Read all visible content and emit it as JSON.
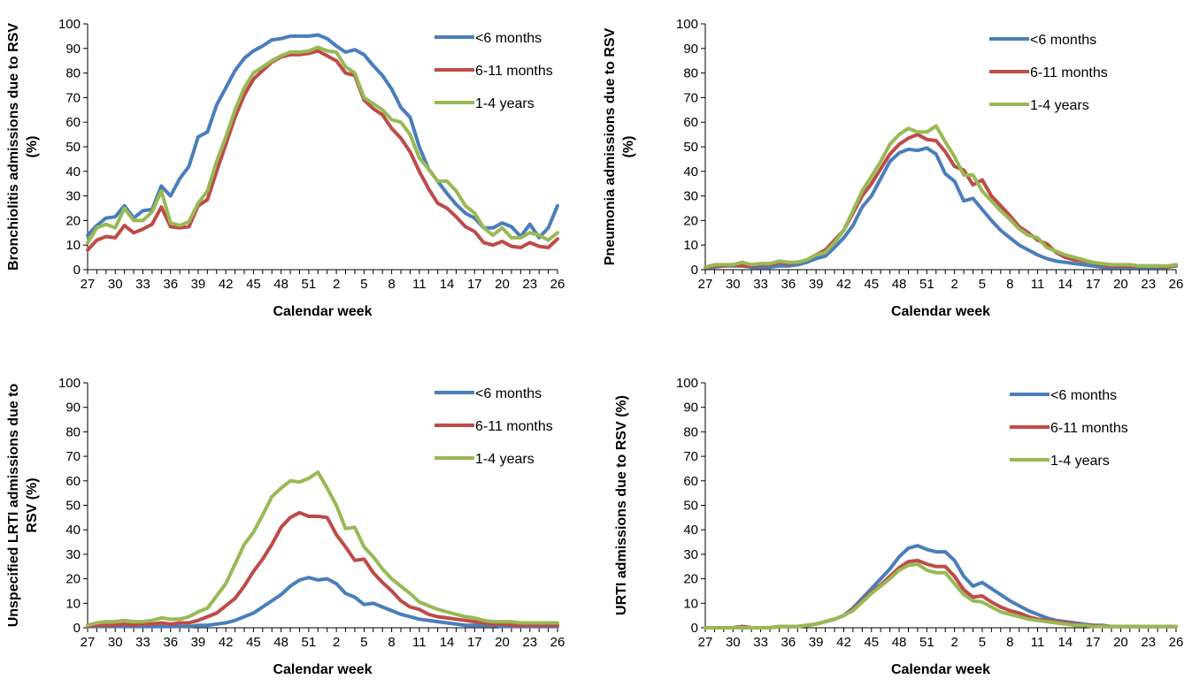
{
  "chart_data": [
    {
      "type": "line",
      "title": "",
      "xlabel": "Calendar week",
      "ylabel": "Bronchiolitis admissions due to RSV (%)",
      "ylim": [
        0,
        100
      ],
      "yticks": [
        0,
        10,
        20,
        30,
        40,
        50,
        60,
        70,
        80,
        90,
        100
      ],
      "x_tick_labels": [
        "27",
        "30",
        "33",
        "36",
        "39",
        "42",
        "45",
        "48",
        "51",
        "2",
        "5",
        "8",
        "11",
        "14",
        "17",
        "20",
        "23",
        "26"
      ],
      "x_weeks": [
        27,
        28,
        29,
        30,
        31,
        32,
        33,
        34,
        35,
        36,
        37,
        38,
        39,
        40,
        41,
        42,
        43,
        44,
        45,
        46,
        47,
        48,
        49,
        50,
        51,
        52,
        1,
        2,
        3,
        4,
        5,
        6,
        7,
        8,
        9,
        10,
        11,
        12,
        13,
        14,
        15,
        16,
        17,
        18,
        19,
        20,
        21,
        22,
        23,
        24,
        25,
        26
      ],
      "legend_position": "top-right",
      "series": [
        {
          "name": "<6 months",
          "color": "#4a7ebb",
          "values": [
            14,
            18,
            21,
            21.5,
            26,
            21,
            24,
            24.5,
            34,
            30,
            37,
            42,
            54,
            56,
            67,
            74,
            81,
            86,
            89,
            91,
            93.5,
            94,
            95,
            95,
            95,
            95.5,
            94,
            91,
            88.5,
            89.5,
            87.5,
            83,
            79,
            73.5,
            66,
            62,
            50,
            41,
            36,
            31,
            26.5,
            23,
            21,
            17,
            17,
            19,
            17.5,
            13.5,
            18.5,
            13,
            17,
            26
          ]
        },
        {
          "name": "6-11 months",
          "color": "#be4b48",
          "values": [
            8,
            12,
            13.5,
            13,
            18,
            15,
            16.5,
            18.5,
            25.5,
            17.5,
            17,
            17.5,
            26,
            28.5,
            40,
            51,
            62,
            71,
            77.5,
            81,
            84.5,
            86.5,
            87.5,
            87.5,
            88,
            89,
            87,
            85,
            80,
            79,
            69,
            65.5,
            63,
            57.5,
            53.5,
            48,
            40,
            33,
            27,
            25,
            21.5,
            17.5,
            15.5,
            11,
            10,
            11.5,
            9.5,
            9,
            11,
            9.5,
            9,
            12.5
          ]
        },
        {
          "name": "1-4 years",
          "color": "#98b954",
          "values": [
            11,
            17,
            18.5,
            17,
            25,
            20,
            20,
            23.5,
            32,
            19,
            18,
            19.5,
            27,
            32,
            44,
            54,
            65,
            74,
            80,
            82.5,
            85,
            87,
            88.5,
            88.5,
            89,
            90.5,
            89,
            88.5,
            82.5,
            80,
            70,
            67.5,
            65,
            61,
            60,
            55,
            45.5,
            41,
            36,
            36,
            32,
            26,
            23,
            17,
            14,
            17,
            13,
            13,
            15,
            14,
            12,
            15
          ]
        }
      ]
    },
    {
      "type": "line",
      "title": "",
      "xlabel": "Calendar week",
      "ylabel": "Pneumonia admissions due to RSV (%)",
      "ylim": [
        0,
        100
      ],
      "yticks": [
        0,
        10,
        20,
        30,
        40,
        50,
        60,
        70,
        80,
        90,
        100
      ],
      "x_tick_labels": [
        "27",
        "30",
        "33",
        "36",
        "39",
        "42",
        "45",
        "48",
        "51",
        "2",
        "5",
        "8",
        "11",
        "14",
        "17",
        "20",
        "23",
        "26"
      ],
      "x_weeks": [
        27,
        28,
        29,
        30,
        31,
        32,
        33,
        34,
        35,
        36,
        37,
        38,
        39,
        40,
        41,
        42,
        43,
        44,
        45,
        46,
        47,
        48,
        49,
        50,
        51,
        52,
        1,
        2,
        3,
        4,
        5,
        6,
        7,
        8,
        9,
        10,
        11,
        12,
        13,
        14,
        15,
        16,
        17,
        18,
        19,
        20,
        21,
        22,
        23,
        24,
        25,
        26
      ],
      "legend_position": "top-right",
      "series": [
        {
          "name": "<6 months",
          "color": "#4a7ebb",
          "values": [
            1,
            1,
            1.5,
            1.5,
            1.5,
            1,
            1,
            1,
            1.5,
            1.5,
            2,
            3,
            4.5,
            5.5,
            9,
            13,
            18,
            25.5,
            30,
            37,
            44,
            47.5,
            49,
            48.5,
            49.5,
            47,
            39,
            36,
            28,
            29,
            24.5,
            20,
            16,
            13,
            10,
            8,
            6,
            4.5,
            3.5,
            3,
            2.5,
            2,
            1.5,
            1,
            1,
            1,
            1,
            1,
            1,
            1,
            1,
            1.5
          ]
        },
        {
          "name": "6-11 months",
          "color": "#be4b48",
          "values": [
            1,
            1.5,
            1.5,
            2,
            1.5,
            1.5,
            2,
            2,
            3,
            2.5,
            3,
            4,
            6,
            8,
            12,
            16,
            23,
            30,
            35,
            41,
            47,
            51,
            53.5,
            55,
            53,
            52.5,
            48,
            42,
            40.5,
            34.5,
            36.5,
            30,
            26,
            22,
            17.5,
            15,
            12,
            10.5,
            7,
            5,
            4,
            3.5,
            3,
            2,
            1.5,
            1.5,
            1.5,
            1.5,
            1.5,
            1.5,
            1,
            2
          ]
        },
        {
          "name": "1-4 years",
          "color": "#98b954",
          "values": [
            1,
            2,
            2,
            2,
            3,
            2,
            2.5,
            2.5,
            3.5,
            3,
            3,
            4,
            6,
            7,
            11,
            16,
            24,
            32,
            38,
            44,
            51,
            55,
            57.5,
            56,
            56,
            58.5,
            52,
            46,
            38.5,
            38.5,
            32,
            28,
            24,
            20.5,
            16.5,
            14,
            13,
            9,
            7.5,
            6,
            5,
            4,
            3,
            2.5,
            2,
            2,
            2,
            1.5,
            1.5,
            1.5,
            1.5,
            2
          ]
        }
      ]
    },
    {
      "type": "line",
      "title": "",
      "xlabel": "Calendar week",
      "ylabel": "Unspecified LRTI admissions due to RSV (%)",
      "ylim": [
        0,
        100
      ],
      "yticks": [
        0,
        10,
        20,
        30,
        40,
        50,
        60,
        70,
        80,
        90,
        100
      ],
      "x_tick_labels": [
        "27",
        "30",
        "33",
        "36",
        "39",
        "42",
        "45",
        "48",
        "51",
        "2",
        "5",
        "8",
        "11",
        "14",
        "17",
        "20",
        "23",
        "26"
      ],
      "x_weeks": [
        27,
        28,
        29,
        30,
        31,
        32,
        33,
        34,
        35,
        36,
        37,
        38,
        39,
        40,
        41,
        42,
        43,
        44,
        45,
        46,
        47,
        48,
        49,
        50,
        51,
        52,
        1,
        2,
        3,
        4,
        5,
        6,
        7,
        8,
        9,
        10,
        11,
        12,
        13,
        14,
        15,
        16,
        17,
        18,
        19,
        20,
        21,
        22,
        23,
        24,
        25,
        26
      ],
      "legend_position": "top-right",
      "series": [
        {
          "name": "<6 months",
          "color": "#4a7ebb",
          "values": [
            0.5,
            0.5,
            0.5,
            0.5,
            0.5,
            0.5,
            0.5,
            0.5,
            0.5,
            0.5,
            0.5,
            0.5,
            1,
            1,
            1.5,
            2,
            3,
            4.5,
            6,
            8.5,
            11,
            13.5,
            17,
            19.5,
            20.5,
            19.5,
            20,
            18,
            14,
            12.5,
            9.5,
            10,
            8.5,
            7,
            5.5,
            4.5,
            3.5,
            3,
            2.5,
            2,
            1.5,
            1,
            1,
            1,
            1,
            0.5,
            0.5,
            0.5,
            0.5,
            0.5,
            0.5,
            0.5
          ]
        },
        {
          "name": "6-11 months",
          "color": "#be4b48",
          "values": [
            0.5,
            1,
            1,
            1,
            1.5,
            1,
            1.5,
            1.5,
            2,
            1.5,
            2,
            2,
            3,
            4.5,
            6,
            9,
            12,
            17,
            23,
            28,
            34,
            41,
            45,
            47,
            45.5,
            45.5,
            45,
            38,
            33,
            27.5,
            28,
            22.5,
            18.5,
            15,
            11,
            8.5,
            7.5,
            5.5,
            4.5,
            4,
            3.5,
            3,
            2.5,
            2,
            1.5,
            1.5,
            1,
            1,
            1,
            1,
            1,
            1
          ]
        },
        {
          "name": "1-4 years",
          "color": "#98b954",
          "values": [
            1,
            2,
            2.5,
            2.5,
            3,
            2.5,
            2.5,
            3,
            4,
            3.5,
            3.5,
            4.5,
            6.5,
            8,
            13,
            18,
            26,
            34,
            39,
            46,
            53.5,
            57,
            60,
            59.5,
            61,
            63.5,
            57,
            50,
            40.5,
            41,
            33,
            29,
            24,
            20,
            17,
            14,
            10.5,
            9,
            7.5,
            6.5,
            5.5,
            4.5,
            4,
            3,
            2.5,
            2.5,
            2.5,
            2,
            2,
            2,
            2,
            2
          ]
        }
      ]
    },
    {
      "type": "line",
      "title": "",
      "xlabel": "Calendar week",
      "ylabel": "URTI admissions due to RSV (%)",
      "ylim": [
        0,
        100
      ],
      "yticks": [
        0,
        10,
        20,
        30,
        40,
        50,
        60,
        70,
        80,
        90,
        100
      ],
      "x_tick_labels": [
        "27",
        "30",
        "33",
        "36",
        "39",
        "42",
        "45",
        "48",
        "51",
        "2",
        "5",
        "8",
        "11",
        "14",
        "17",
        "20",
        "23",
        "26"
      ],
      "x_weeks": [
        27,
        28,
        29,
        30,
        31,
        32,
        33,
        34,
        35,
        36,
        37,
        38,
        39,
        40,
        41,
        42,
        43,
        44,
        45,
        46,
        47,
        48,
        49,
        50,
        51,
        52,
        1,
        2,
        3,
        4,
        5,
        6,
        7,
        8,
        9,
        10,
        11,
        12,
        13,
        14,
        15,
        16,
        17,
        18,
        19,
        20,
        21,
        22,
        23,
        24,
        25,
        26
      ],
      "legend_position": "top-right",
      "series": [
        {
          "name": "<6 months",
          "color": "#4a7ebb",
          "values": [
            0,
            0,
            0,
            0,
            0.5,
            0,
            0,
            0,
            0.5,
            0.5,
            0.5,
            1,
            1.5,
            2.5,
            3.5,
            5,
            8,
            12,
            16,
            20,
            24,
            29,
            32.5,
            33.5,
            32,
            31,
            31,
            27.5,
            21,
            17,
            18.5,
            16,
            13.5,
            11,
            9,
            7,
            5.5,
            4,
            3,
            2.5,
            2,
            1.5,
            1,
            1,
            0.5,
            0.5,
            0.5,
            0.5,
            0.5,
            0.5,
            0.5,
            0.5
          ]
        },
        {
          "name": "6-11 months",
          "color": "#be4b48",
          "values": [
            0,
            0,
            0,
            0,
            0.5,
            0,
            0,
            0,
            0.5,
            0.5,
            0.5,
            1,
            1.5,
            2.5,
            3.5,
            5,
            7.5,
            11,
            14.5,
            17.5,
            21,
            24.5,
            27,
            27.5,
            26,
            25,
            25,
            21,
            15.5,
            12.5,
            13,
            10.5,
            8.5,
            7,
            6,
            4.5,
            3.5,
            3,
            2.5,
            2,
            1.5,
            1,
            1,
            0.5,
            0.5,
            0.5,
            0.5,
            0.5,
            0.5,
            0.5,
            0.5,
            0.5
          ]
        },
        {
          "name": "1-4 years",
          "color": "#98b954",
          "values": [
            0,
            0,
            0,
            0,
            0,
            0,
            0,
            0,
            0.5,
            0.5,
            0.5,
            1,
            1.5,
            2.5,
            3.5,
            5,
            7,
            10.5,
            14,
            17,
            20,
            23.5,
            25.5,
            26,
            23.5,
            22.5,
            22.5,
            18,
            13.5,
            11,
            10.5,
            8.5,
            6.5,
            5.5,
            4.5,
            3.5,
            3,
            2.5,
            2,
            1.5,
            1,
            1,
            0.5,
            0.5,
            0.5,
            0.5,
            0.5,
            0.5,
            0.5,
            0.5,
            0.5,
            0.5
          ]
        }
      ]
    }
  ]
}
